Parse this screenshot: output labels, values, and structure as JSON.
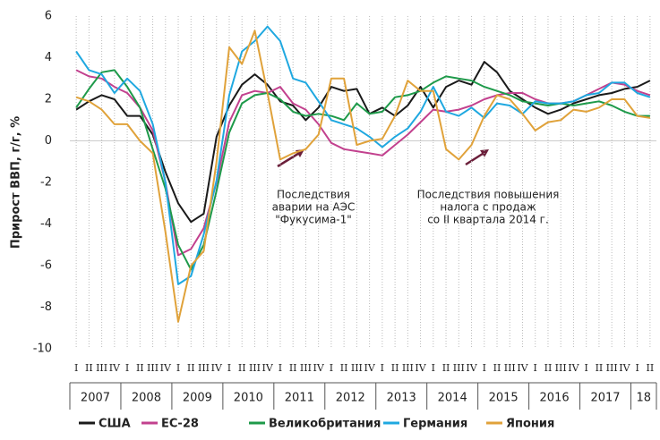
{
  "chart_data": {
    "type": "line",
    "y_label": "Прирост ВВП, г/г, %",
    "categories": [
      "I",
      "II",
      "III",
      "IV",
      "I",
      "II",
      "III",
      "IV",
      "I",
      "II",
      "III",
      "IV",
      "I",
      "II",
      "III",
      "IV",
      "I",
      "II",
      "III",
      "IV",
      "I",
      "II",
      "III",
      "IV",
      "I",
      "II",
      "III",
      "IV",
      "I",
      "II",
      "III",
      "IV",
      "I",
      "II",
      "III",
      "IV",
      "I",
      "II",
      "III",
      "IV",
      "I",
      "II",
      "III",
      "IV",
      "I",
      "II"
    ],
    "year_labels": [
      "2007",
      "2008",
      "2009",
      "2010",
      "2011",
      "2012",
      "2013",
      "2014",
      "2015",
      "2016",
      "2017",
      "18"
    ],
    "ylim": [
      -10,
      6
    ],
    "yticks": [
      -10,
      -8,
      -6,
      -4,
      -2,
      0,
      2,
      4,
      6
    ],
    "series": [
      {
        "name": "США",
        "color": "#1a1a1a",
        "values": [
          1.5,
          1.9,
          2.2,
          2.0,
          1.2,
          1.2,
          0.3,
          -1.5,
          -3.0,
          -3.9,
          -3.5,
          0.2,
          1.7,
          2.7,
          3.2,
          2.7,
          1.9,
          1.7,
          1.0,
          1.6,
          2.6,
          2.4,
          2.5,
          1.3,
          1.6,
          1.2,
          1.7,
          2.6,
          1.6,
          2.6,
          2.9,
          2.7,
          3.8,
          3.3,
          2.4,
          2.0,
          1.6,
          1.3,
          1.5,
          1.8,
          2.0,
          2.2,
          2.3,
          2.5,
          2.6,
          2.9
        ]
      },
      {
        "name": "ЕС-28",
        "color": "#c2418e",
        "values": [
          3.4,
          3.1,
          3.0,
          2.6,
          2.3,
          1.6,
          0.5,
          -2.0,
          -5.5,
          -5.2,
          -4.2,
          -2.0,
          0.9,
          2.2,
          2.4,
          2.3,
          2.6,
          1.8,
          1.5,
          0.8,
          -0.1,
          -0.4,
          -0.5,
          -0.6,
          -0.7,
          -0.2,
          0.3,
          0.9,
          1.5,
          1.4,
          1.5,
          1.7,
          2.0,
          2.2,
          2.3,
          2.3,
          2.0,
          1.8,
          1.8,
          1.9,
          2.2,
          2.5,
          2.8,
          2.7,
          2.4,
          2.2
        ]
      },
      {
        "name": "Великобритания",
        "color": "#1e9a4a",
        "values": [
          1.6,
          2.5,
          3.3,
          3.4,
          2.6,
          1.6,
          -0.4,
          -2.3,
          -5.0,
          -6.2,
          -5.0,
          -2.4,
          0.4,
          1.8,
          2.2,
          2.3,
          2.0,
          1.4,
          1.2,
          1.3,
          1.2,
          1.0,
          1.8,
          1.3,
          1.4,
          2.1,
          2.2,
          2.4,
          2.8,
          3.1,
          3.0,
          2.9,
          2.6,
          2.4,
          2.2,
          1.9,
          1.8,
          1.7,
          1.8,
          1.7,
          1.8,
          1.9,
          1.7,
          1.4,
          1.2,
          1.2
        ]
      },
      {
        "name": "Германия",
        "color": "#1fa8e0",
        "values": [
          4.3,
          3.4,
          3.2,
          2.3,
          3.0,
          2.4,
          0.8,
          -2.0,
          -6.9,
          -6.5,
          -4.5,
          -1.9,
          2.2,
          4.3,
          4.8,
          5.5,
          4.8,
          3.0,
          2.8,
          1.9,
          1.0,
          0.8,
          0.6,
          0.2,
          -0.3,
          0.2,
          0.6,
          1.4,
          2.6,
          1.4,
          1.2,
          1.6,
          1.1,
          1.8,
          1.7,
          1.3,
          1.9,
          1.8,
          1.8,
          1.9,
          2.2,
          2.3,
          2.8,
          2.8,
          2.3,
          2.1
        ]
      },
      {
        "name": "Япония",
        "color": "#e0a23a",
        "values": [
          2.1,
          1.9,
          1.5,
          0.8,
          0.8,
          0.0,
          -0.6,
          -4.4,
          -8.7,
          -6.0,
          -5.3,
          -1.0,
          4.5,
          3.7,
          5.3,
          2.3,
          -0.9,
          -0.6,
          -0.4,
          0.3,
          3.0,
          3.0,
          -0.2,
          0.0,
          0.1,
          1.2,
          2.9,
          2.4,
          2.4,
          -0.4,
          -0.9,
          -0.2,
          1.2,
          2.2,
          2.0,
          1.3,
          0.5,
          0.9,
          1.0,
          1.5,
          1.4,
          1.6,
          2.0,
          2.0,
          1.2,
          1.1
        ]
      }
    ],
    "annotations": [
      {
        "lines": [
          "Последствия",
          "аварии на АЭС",
          "\"Фукусима-1\""
        ]
      },
      {
        "lines": [
          "Последствия повышения",
          "налога с продаж",
          "со II квартала 2014 г."
        ]
      }
    ]
  }
}
